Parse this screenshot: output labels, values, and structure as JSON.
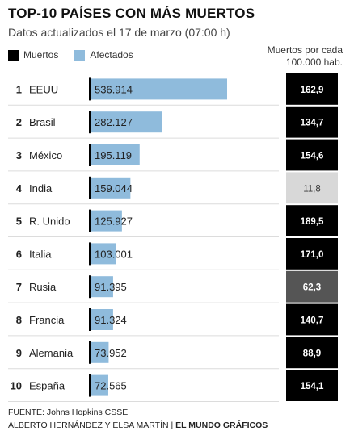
{
  "title": "TOP-10 PAÍSES CON MÁS MUERTOS",
  "subtitle": "Datos actualizados el 17 de marzo (07:00 h)",
  "legend": {
    "deaths": {
      "label": "Muertos",
      "color": "#000000"
    },
    "affected": {
      "label": "Afectados",
      "color": "#8fbbdc"
    }
  },
  "rate_header": {
    "line1": "Muertos por cada",
    "line2": "100.000 hab."
  },
  "footer": {
    "source": "FUENTE: Johns Hopkins CSSE",
    "authors": "ALBERTO HERNÁNDEZ Y ELSA MARTÍN",
    "separator": " | ",
    "outlet": "EL MUNDO GRÁFICOS"
  },
  "colors": {
    "bar": "#8fbbdc",
    "divider": "#dcdcdc",
    "rate_text_dark_bg": "#ffffff",
    "rate_text_light_bg": "#333333"
  },
  "chart_data": {
    "type": "bar",
    "orientation": "horizontal",
    "axis_max": 536914,
    "rows": [
      {
        "rank": "1",
        "country": "EEUU",
        "affected": 536914,
        "affected_label": "536.914",
        "rate": "162,9",
        "rate_color": "#000000"
      },
      {
        "rank": "2",
        "country": "Brasil",
        "affected": 282127,
        "affected_label": "282.127",
        "rate": "134,7",
        "rate_color": "#000000"
      },
      {
        "rank": "3",
        "country": "México",
        "affected": 195119,
        "affected_label": "195.119",
        "rate": "154,6",
        "rate_color": "#000000"
      },
      {
        "rank": "4",
        "country": "India",
        "affected": 159044,
        "affected_label": "159.044",
        "rate": "11,8",
        "rate_color": "#d8d8d8"
      },
      {
        "rank": "5",
        "country": "R. Unido",
        "affected": 125927,
        "affected_label": "125.927",
        "rate": "189,5",
        "rate_color": "#000000"
      },
      {
        "rank": "6",
        "country": "Italia",
        "affected": 103001,
        "affected_label": "103.001",
        "rate": "171,0",
        "rate_color": "#000000"
      },
      {
        "rank": "7",
        "country": "Rusia",
        "affected": 91395,
        "affected_label": "91.395",
        "rate": "62,3",
        "rate_color": "#555555"
      },
      {
        "rank": "8",
        "country": "Francia",
        "affected": 91324,
        "affected_label": "91.324",
        "rate": "140,7",
        "rate_color": "#000000"
      },
      {
        "rank": "9",
        "country": "Alemania",
        "affected": 73952,
        "affected_label": "73.952",
        "rate": "88,9",
        "rate_color": "#000000"
      },
      {
        "rank": "10",
        "country": "España",
        "affected": 72565,
        "affected_label": "72.565",
        "rate": "154,1",
        "rate_color": "#000000"
      }
    ]
  }
}
